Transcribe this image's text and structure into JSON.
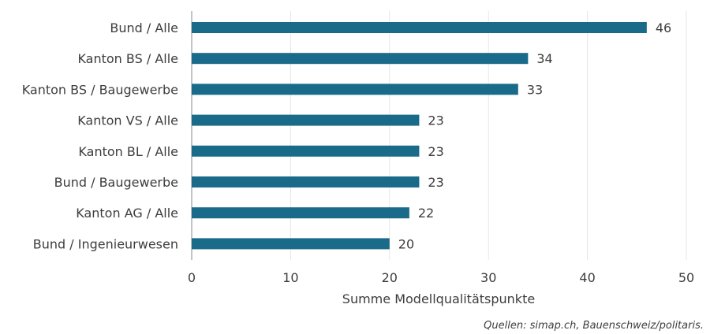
{
  "chart_data": {
    "type": "bar",
    "orientation": "horizontal",
    "categories": [
      "Bund / Alle",
      "Kanton BS / Alle",
      "Kanton BS / Baugewerbe",
      "Kanton VS / Alle",
      "Kanton BL / Alle",
      "Bund / Baugewerbe",
      "Kanton AG / Alle",
      "Bund / Ingenieurwesen"
    ],
    "values": [
      46,
      34,
      33,
      23,
      23,
      23,
      22,
      20
    ],
    "xlabel": "Summe Modellqualitätspunkte",
    "xlim": [
      0,
      50
    ],
    "xticks": [
      0,
      10,
      20,
      30,
      40,
      50
    ],
    "grid": "vertical",
    "bar_color": "#1a6a8a",
    "data_labels": true
  },
  "source": "Quellen: simap.ch, Bauenschweiz/politaris."
}
